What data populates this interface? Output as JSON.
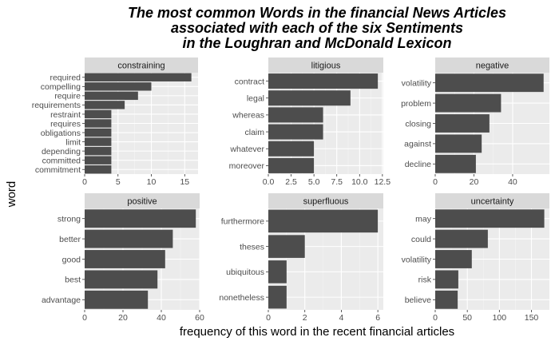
{
  "chart_data": {
    "type": "bar",
    "orientation": "horizontal",
    "title": [
      "The most common Words in the financial News Articles",
      "associated with each of the six Sentiments",
      "in the Loughran and McDonald Lexicon"
    ],
    "xlabel": "frequency of this word in the recent financial articles",
    "ylabel": "word",
    "grid": true,
    "bar_color": "#4d4d4d",
    "panel_background": "#ebebeb",
    "strip_background": "#d9d9d9",
    "facets": [
      {
        "name": "constraining",
        "xlim": [
          0,
          17
        ],
        "xticks": [
          0,
          5,
          10,
          15
        ],
        "xtick_labels": [
          "0",
          "5",
          "10",
          "15"
        ],
        "categories": [
          "required",
          "compelling",
          "require",
          "requirements",
          "restraint",
          "requires",
          "obligations",
          "limit",
          "depending",
          "committed",
          "commitment"
        ],
        "values": [
          16,
          10,
          8,
          6,
          4,
          4,
          4,
          4,
          4,
          4,
          4
        ]
      },
      {
        "name": "litigious",
        "xlim": [
          0,
          12.6
        ],
        "xticks": [
          0,
          2.5,
          5,
          7.5,
          10,
          12.5
        ],
        "xtick_labels": [
          "0.0",
          "2.5",
          "5.0",
          "7.5",
          "10.0",
          "12.5"
        ],
        "categories": [
          "contract",
          "legal",
          "whereas",
          "claim",
          "whatever",
          "moreover"
        ],
        "values": [
          12,
          9,
          6,
          6,
          5,
          5
        ]
      },
      {
        "name": "negative",
        "xlim": [
          0,
          59
        ],
        "xticks": [
          0,
          20,
          40
        ],
        "xtick_labels": [
          "0",
          "20",
          "40"
        ],
        "categories": [
          "volatility",
          "problem",
          "closing",
          "against",
          "decline"
        ],
        "values": [
          56,
          34,
          28,
          24,
          21
        ]
      },
      {
        "name": "positive",
        "xlim": [
          0,
          60
        ],
        "xticks": [
          0,
          20,
          40,
          60
        ],
        "xtick_labels": [
          "0",
          "20",
          "40",
          "60"
        ],
        "categories": [
          "strong",
          "better",
          "good",
          "best",
          "advantage"
        ],
        "values": [
          58,
          46,
          42,
          38,
          33
        ]
      },
      {
        "name": "superfluous",
        "xlim": [
          0,
          6.3
        ],
        "xticks": [
          0,
          2,
          4,
          6
        ],
        "xtick_labels": [
          "0",
          "2",
          "4",
          "6"
        ],
        "categories": [
          "furthermore",
          "theses",
          "ubiquitous",
          "nonetheless"
        ],
        "values": [
          6,
          2,
          1,
          1
        ]
      },
      {
        "name": "uncertainty",
        "xlim": [
          0,
          178
        ],
        "xticks": [
          0,
          50,
          100,
          150
        ],
        "xtick_labels": [
          "0",
          "50",
          "100",
          "150"
        ],
        "categories": [
          "may",
          "could",
          "volatility",
          "risk",
          "believe"
        ],
        "values": [
          170,
          82,
          57,
          36,
          35
        ]
      }
    ]
  }
}
